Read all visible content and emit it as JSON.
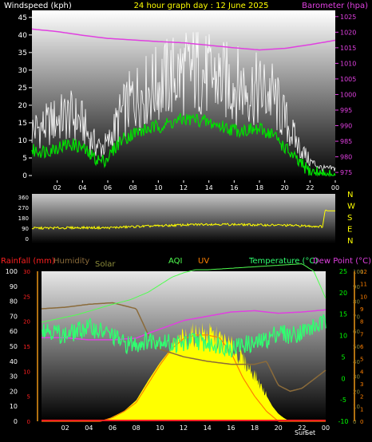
{
  "colors": {
    "wind": "#ffffff",
    "wind_avg": "#00e000",
    "barometer": "#e040e0",
    "direction": "#ffff00",
    "rainfall": "#ff2020",
    "humidity": "#8b6b3a",
    "solar": "#ffff00",
    "solar_label": "#8b8b3a",
    "aqi": "#50ff50",
    "uv": "#ff8000",
    "temperature": "#30ff70",
    "dew_point": "#e040e0",
    "temp_axis": "#00ff00",
    "header": "#ffff00"
  },
  "chart_data": [
    {
      "type": "line",
      "title": "24 hour graph day : 12 June 2025",
      "left_axis_label": "Windspeed (kph)",
      "right_axis_label": "Barometer (hpa)",
      "x_ticks": [
        "02",
        "04",
        "06",
        "08",
        "10",
        "12",
        "14",
        "16",
        "18",
        "20",
        "22",
        "00"
      ],
      "y_left_ticks": [
        "0",
        "5",
        "10",
        "15",
        "20",
        "25",
        "30",
        "35",
        "40",
        "45"
      ],
      "y_left_range": [
        0,
        47
      ],
      "y_right_ticks": [
        "975",
        "980",
        "985",
        "990",
        "995",
        "1000",
        "1005",
        "1010",
        "1015",
        "1020",
        "1025"
      ],
      "y_right_range": [
        974,
        1027
      ],
      "series": [
        {
          "key": "gust",
          "hours": [
            0,
            1,
            2,
            3,
            4,
            4.5,
            5,
            5.5,
            6,
            7,
            8,
            9,
            10,
            11,
            12,
            13,
            14,
            15,
            16,
            17,
            18,
            19,
            20,
            21,
            22,
            22.5,
            23,
            24
          ],
          "values": [
            13,
            14,
            16,
            17,
            15,
            11,
            9,
            8,
            9,
            17,
            22,
            24,
            26,
            28,
            29,
            30,
            28,
            27,
            26,
            25,
            24,
            23,
            16,
            9,
            4,
            3,
            2,
            2
          ]
        },
        {
          "key": "wind_avg",
          "hours": [
            0,
            1,
            2,
            3,
            4,
            4.5,
            5,
            5.5,
            6,
            7,
            8,
            9,
            10,
            11,
            12,
            13,
            14,
            15,
            16,
            17,
            18,
            19,
            20,
            21,
            22,
            22.5,
            23,
            24
          ],
          "values": [
            7,
            7,
            8,
            9,
            8,
            6,
            5,
            4,
            5,
            10,
            12,
            13,
            14,
            15,
            16,
            16,
            15,
            14,
            13,
            13,
            13,
            12,
            8,
            4,
            1,
            1,
            0,
            0
          ]
        },
        {
          "key": "barometer",
          "hours": [
            0,
            2,
            4,
            6,
            8,
            10,
            12,
            14,
            16,
            18,
            20,
            22,
            24
          ],
          "values": [
            1021,
            1020.2,
            1019,
            1018,
            1017.5,
            1017,
            1016.6,
            1015.8,
            1015,
            1014.3,
            1014.8,
            1016,
            1017.4
          ]
        }
      ]
    },
    {
      "type": "line",
      "title": "",
      "x_ticks": [],
      "y_left_ticks": [
        "0",
        "90",
        "180",
        "270",
        "360"
      ],
      "y_left_range": [
        0,
        360
      ],
      "y_right_ticks": [
        "N",
        "W",
        "S",
        "E",
        "N"
      ],
      "series": [
        {
          "key": "direction",
          "hours": [
            0,
            2,
            4,
            6,
            8,
            10,
            12,
            14,
            16,
            18,
            20,
            22,
            23,
            23.2,
            23.4,
            24
          ],
          "values": [
            90,
            92,
            95,
            93,
            103,
            110,
            118,
            125,
            122,
            118,
            115,
            108,
            105,
            250,
            240,
            240
          ]
        }
      ]
    },
    {
      "type": "area",
      "title": "",
      "legend": [
        "Rainfall (mm)",
        "Humidity",
        "Solar",
        "AQI",
        "UV",
        "Temperature (°C)",
        "Dew Point (°C)"
      ],
      "x_ticks": [
        "02",
        "04",
        "06",
        "08",
        "10",
        "12",
        "14",
        "16",
        "18",
        "20",
        "22",
        "00"
      ],
      "x_annotations": [
        "Sun",
        "Set"
      ],
      "y_ticks_outer_left": [
        "0",
        "10",
        "20",
        "30",
        "40",
        "50",
        "60",
        "70",
        "80",
        "90",
        "100"
      ],
      "y_ticks_rain": [
        "0",
        "5",
        "10",
        "15",
        "20",
        "25",
        "30"
      ],
      "y_ticks_temp": [
        "-10",
        "-5",
        "0",
        "5",
        "10",
        "15",
        "20",
        "25"
      ],
      "y_ticks_uv": [
        "0",
        "1",
        "2",
        "3",
        "4",
        "5",
        "6",
        "7",
        "8",
        "9",
        "10",
        "11",
        "12"
      ],
      "y_ticks_solar": [
        "0",
        "10",
        "20",
        "30",
        "40",
        "50",
        "60",
        "70",
        "80",
        "90",
        "100"
      ],
      "series": [
        {
          "key": "humidity",
          "hours": [
            0,
            2,
            4,
            6,
            8,
            9,
            10,
            12,
            14,
            16,
            18,
            19,
            20,
            21,
            22,
            23,
            24
          ],
          "values": [
            75,
            76,
            78,
            79,
            75,
            58,
            48,
            43,
            40,
            38,
            38,
            40,
            24,
            20,
            22,
            28,
            34
          ]
        },
        {
          "key": "solar",
          "hours": [
            0,
            4.5,
            5.5,
            6,
            7,
            8,
            9,
            10,
            11,
            12,
            13,
            14,
            15,
            16,
            17,
            18,
            19,
            19.5,
            20,
            20.5,
            21,
            24
          ],
          "values": [
            0,
            0,
            1,
            3,
            7,
            14,
            27,
            39,
            49,
            55,
            58,
            58,
            55,
            50,
            41,
            31,
            17,
            10,
            5,
            2,
            0,
            0
          ]
        },
        {
          "key": "aqi",
          "hours": [
            0,
            3,
            6,
            7.5,
            9,
            10,
            11,
            12,
            13,
            14,
            16,
            18,
            20,
            22,
            23,
            24
          ],
          "values": [
            66,
            71,
            78,
            81,
            86,
            91,
            96,
            99,
            101,
            101,
            102,
            103,
            104,
            105,
            100,
            82
          ]
        },
        {
          "key": "uv",
          "hours": [
            0,
            5,
            6,
            7,
            8,
            9,
            10,
            11,
            12,
            13,
            14,
            15,
            16,
            17,
            18,
            19,
            20,
            24
          ],
          "values": [
            0,
            0,
            0.3,
            0.8,
            1.5,
            3,
            4.5,
            5.8,
            6.6,
            6.9,
            6.9,
            6.7,
            5.5,
            3.5,
            2,
            0.8,
            0,
            0
          ]
        },
        {
          "key": "temperature",
          "hours": [
            0,
            1,
            2,
            3,
            4,
            5,
            6,
            7,
            8,
            9,
            10,
            11,
            12,
            13,
            14,
            15,
            16,
            17,
            18,
            19,
            20,
            21,
            22,
            23,
            24
          ],
          "values": [
            12,
            11,
            10,
            11,
            12,
            11,
            10,
            8,
            8,
            9,
            9,
            8,
            8,
            9,
            8,
            8,
            7,
            8,
            8,
            9,
            11,
            10,
            11,
            12,
            13
          ]
        },
        {
          "key": "dew_point",
          "hours": [
            0,
            2,
            4,
            6,
            7,
            8,
            9,
            10,
            11,
            12,
            14,
            16,
            18,
            20,
            22,
            24
          ],
          "values": [
            9.5,
            9.5,
            9.0,
            9.0,
            9.2,
            9.4,
            10.5,
            11.5,
            12.5,
            13.5,
            14.5,
            15.5,
            15.8,
            15.2,
            15.5,
            16
          ]
        },
        {
          "key": "rain",
          "hours": [
            0,
            24
          ],
          "values": [
            0,
            0
          ]
        }
      ]
    }
  ]
}
